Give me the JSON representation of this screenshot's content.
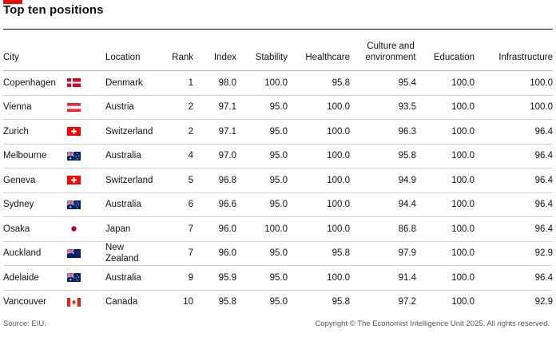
{
  "title": "Top ten positions",
  "chart_data": {
    "type": "table",
    "columns": [
      "City",
      "Location",
      "Rank",
      "Index",
      "Stability",
      "Healthcare",
      "Culture and environment",
      "Education",
      "Infrastructure"
    ],
    "rows": [
      {
        "city": "Copenhagen",
        "flag": "denmark-flag-icon",
        "location": "Denmark",
        "rank": "1",
        "index": "98.0",
        "stability": "100.0",
        "healthcare": "95.8",
        "culture": "95.4",
        "education": "100.0",
        "infrastructure": "100.0"
      },
      {
        "city": "Vienna",
        "flag": "austria-flag-icon",
        "location": "Austria",
        "rank": "2",
        "index": "97.1",
        "stability": "95.0",
        "healthcare": "100.0",
        "culture": "93.5",
        "education": "100.0",
        "infrastructure": "100.0"
      },
      {
        "city": "Zurich",
        "flag": "switzerland-flag-icon",
        "location": "Switzerland",
        "rank": "2",
        "index": "97.1",
        "stability": "95.0",
        "healthcare": "100.0",
        "culture": "96.3",
        "education": "100.0",
        "infrastructure": "96.4"
      },
      {
        "city": "Melbourne",
        "flag": "australia-flag-icon",
        "location": "Australia",
        "rank": "4",
        "index": "97.0",
        "stability": "95.0",
        "healthcare": "100.0",
        "culture": "95.8",
        "education": "100.0",
        "infrastructure": "96.4"
      },
      {
        "city": "Geneva",
        "flag": "switzerland-flag-icon",
        "location": "Switzerland",
        "rank": "5",
        "index": "96.8",
        "stability": "95.0",
        "healthcare": "100.0",
        "culture": "94.9",
        "education": "100.0",
        "infrastructure": "96.4"
      },
      {
        "city": "Sydney",
        "flag": "australia-flag-icon",
        "location": "Australia",
        "rank": "6",
        "index": "96.6",
        "stability": "95.0",
        "healthcare": "100.0",
        "culture": "94.4",
        "education": "100.0",
        "infrastructure": "96.4"
      },
      {
        "city": "Osaka",
        "flag": "japan-flag-icon",
        "location": "Japan",
        "rank": "7",
        "index": "96.0",
        "stability": "100.0",
        "healthcare": "100.0",
        "culture": "86.8",
        "education": "100.0",
        "infrastructure": "96.4"
      },
      {
        "city": "Auckland",
        "flag": "new-zealand-flag-icon",
        "location": "New Zealand",
        "rank": "7",
        "index": "96.0",
        "stability": "95.0",
        "healthcare": "95.8",
        "culture": "97.9",
        "education": "100.0",
        "infrastructure": "92.9"
      },
      {
        "city": "Adelaide",
        "flag": "australia-flag-icon",
        "location": "Australia",
        "rank": "9",
        "index": "95.9",
        "stability": "95.0",
        "healthcare": "100.0",
        "culture": "91.4",
        "education": "100.0",
        "infrastructure": "96.4"
      },
      {
        "city": "Vancouver",
        "flag": "canada-flag-icon",
        "location": "Canada",
        "rank": "10",
        "index": "95.8",
        "stability": "95.0",
        "healthcare": "95.8",
        "culture": "97.2",
        "education": "100.0",
        "infrastructure": "92.9"
      }
    ]
  },
  "footer": {
    "source": "Source: EIU.",
    "copyright": "Copyright © The Economist Intelligence Unit 2025. All rights reserved."
  },
  "colors": {
    "accent": "#e3120b",
    "denmark_red": "#c8102e",
    "austria_red": "#ed2939",
    "swiss_red": "#ff0000",
    "australia_blue": "#012169",
    "japan_red": "#bc002d",
    "canada_red": "#d52b1e"
  }
}
